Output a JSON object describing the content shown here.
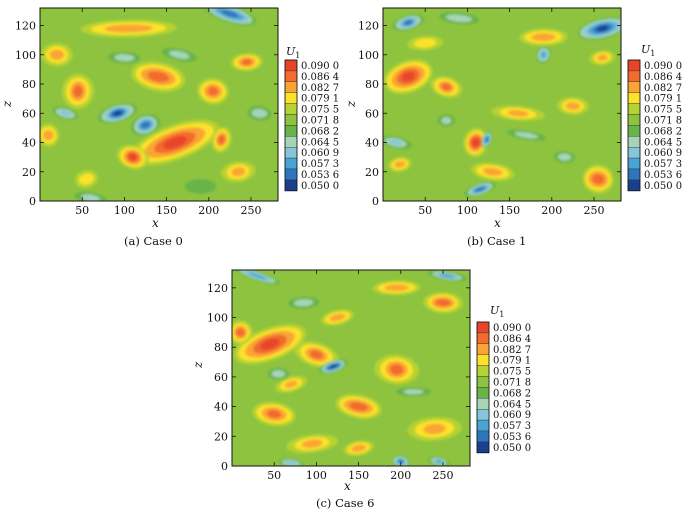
{
  "colors": [
    "#1b3f8f",
    "#2f75be",
    "#4aa4d3",
    "#86c6d8",
    "#a6d4b7",
    "#68b449",
    "#8ec33f",
    "#b6d233",
    "#fce32a",
    "#f9a535",
    "#f26b2f",
    "#e8442c"
  ],
  "chart_data": [
    {
      "type": "heatmap",
      "caption": "(a) Case 0",
      "xlabel": "x",
      "ylabel": "z",
      "xlim": [
        0,
        282
      ],
      "ylim": [
        0,
        132
      ],
      "xticks": [
        "50",
        "100",
        "150",
        "200",
        "250"
      ],
      "yticks": [
        "0",
        "20",
        "40",
        "60",
        "80",
        "100",
        "120"
      ],
      "legend_title": "U",
      "legend_subscript": "1",
      "legend_levels": [
        "0.090 0",
        "0.086 4",
        "0.082 7",
        "0.079 1",
        "0.075 5",
        "0.071 8",
        "0.068 2",
        "0.064 5",
        "0.060 9",
        "0.057 3",
        "0.053 6",
        "0.050 0"
      ],
      "features": [
        {
          "x": 160,
          "z": 40,
          "rx": 55,
          "rz": 12,
          "value": 0.09
        },
        {
          "x": 110,
          "z": 30,
          "rx": 18,
          "rz": 8,
          "value": 0.089
        },
        {
          "x": 215,
          "z": 42,
          "rx": 12,
          "rz": 9,
          "value": 0.088
        },
        {
          "x": 140,
          "z": 85,
          "rx": 35,
          "rz": 10,
          "value": 0.088
        },
        {
          "x": 205,
          "z": 75,
          "rx": 18,
          "rz": 9,
          "value": 0.087
        },
        {
          "x": 45,
          "z": 75,
          "rx": 18,
          "rz": 12,
          "value": 0.086
        },
        {
          "x": 20,
          "z": 100,
          "rx": 20,
          "rz": 8,
          "value": 0.085
        },
        {
          "x": 105,
          "z": 118,
          "rx": 60,
          "rz": 6,
          "value": 0.083
        },
        {
          "x": 245,
          "z": 95,
          "rx": 18,
          "rz": 6,
          "value": 0.086
        },
        {
          "x": 235,
          "z": 20,
          "rx": 20,
          "rz": 7,
          "value": 0.084
        },
        {
          "x": 10,
          "z": 45,
          "rx": 14,
          "rz": 8,
          "value": 0.084
        },
        {
          "x": 55,
          "z": 15,
          "rx": 14,
          "rz": 6,
          "value": 0.081
        },
        {
          "x": 92,
          "z": 60,
          "rx": 22,
          "rz": 6,
          "value": 0.05
        },
        {
          "x": 125,
          "z": 52,
          "rx": 18,
          "rz": 7,
          "value": 0.053
        },
        {
          "x": 225,
          "z": 128,
          "rx": 35,
          "rz": 6,
          "value": 0.052
        },
        {
          "x": 30,
          "z": 60,
          "rx": 15,
          "rz": 4,
          "value": 0.06
        },
        {
          "x": 165,
          "z": 100,
          "rx": 20,
          "rz": 4,
          "value": 0.062
        },
        {
          "x": 60,
          "z": 2,
          "rx": 20,
          "rz": 4,
          "value": 0.062
        },
        {
          "x": 260,
          "z": 60,
          "rx": 15,
          "rz": 5,
          "value": 0.064
        },
        {
          "x": 100,
          "z": 98,
          "rx": 18,
          "rz": 4,
          "value": 0.065
        },
        {
          "x": 190,
          "z": 10,
          "rx": 18,
          "rz": 5,
          "value": 0.066
        }
      ]
    },
    {
      "type": "heatmap",
      "caption": "(b) Case 1",
      "xlabel": "x",
      "ylabel": "z",
      "xlim": [
        0,
        282
      ],
      "ylim": [
        0,
        132
      ],
      "xticks": [
        "50",
        "100",
        "150",
        "200",
        "250"
      ],
      "yticks": [
        "0",
        "20",
        "40",
        "60",
        "80",
        "100",
        "120"
      ],
      "legend_title": "U",
      "legend_subscript": "1",
      "legend_levels": [
        "0.090 0",
        "0.086 4",
        "0.082 7",
        "0.079 1",
        "0.075 5",
        "0.071 8",
        "0.068 2",
        "0.064 5",
        "0.060 9",
        "0.057 3",
        "0.053 6",
        "0.050 0"
      ],
      "features": [
        {
          "x": 30,
          "z": 85,
          "rx": 30,
          "rz": 11,
          "value": 0.09
        },
        {
          "x": 75,
          "z": 78,
          "rx": 18,
          "rz": 7,
          "value": 0.087
        },
        {
          "x": 110,
          "z": 40,
          "rx": 15,
          "rz": 10,
          "value": 0.089
        },
        {
          "x": 255,
          "z": 15,
          "rx": 20,
          "rz": 10,
          "value": 0.088
        },
        {
          "x": 130,
          "z": 20,
          "rx": 25,
          "rz": 6,
          "value": 0.084
        },
        {
          "x": 160,
          "z": 60,
          "rx": 30,
          "rz": 5,
          "value": 0.083
        },
        {
          "x": 225,
          "z": 65,
          "rx": 20,
          "rz": 6,
          "value": 0.084
        },
        {
          "x": 190,
          "z": 112,
          "rx": 30,
          "rz": 6,
          "value": 0.083
        },
        {
          "x": 50,
          "z": 108,
          "rx": 20,
          "rz": 5,
          "value": 0.081
        },
        {
          "x": 260,
          "z": 98,
          "rx": 15,
          "rz": 5,
          "value": 0.084
        },
        {
          "x": 20,
          "z": 25,
          "rx": 15,
          "rz": 5,
          "value": 0.082
        },
        {
          "x": 260,
          "z": 118,
          "rx": 30,
          "rz": 7,
          "value": 0.05
        },
        {
          "x": 30,
          "z": 122,
          "rx": 18,
          "rz": 5,
          "value": 0.054
        },
        {
          "x": 115,
          "z": 8,
          "rx": 20,
          "rz": 4,
          "value": 0.052
        },
        {
          "x": 123,
          "z": 42,
          "rx": 6,
          "rz": 6,
          "value": 0.052
        },
        {
          "x": 190,
          "z": 100,
          "rx": 8,
          "rz": 6,
          "value": 0.056
        },
        {
          "x": 15,
          "z": 40,
          "rx": 18,
          "rz": 4,
          "value": 0.06
        },
        {
          "x": 170,
          "z": 45,
          "rx": 25,
          "rz": 3,
          "value": 0.064
        },
        {
          "x": 90,
          "z": 125,
          "rx": 25,
          "rz": 4,
          "value": 0.063
        },
        {
          "x": 215,
          "z": 30,
          "rx": 12,
          "rz": 4,
          "value": 0.062
        },
        {
          "x": 75,
          "z": 55,
          "rx": 10,
          "rz": 4,
          "value": 0.065
        }
      ]
    },
    {
      "type": "heatmap",
      "caption": "(c) Case 6",
      "xlabel": "x",
      "ylabel": "z",
      "xlim": [
        0,
        282
      ],
      "ylim": [
        0,
        132
      ],
      "xticks": [
        "50",
        "100",
        "150",
        "200",
        "250"
      ],
      "yticks": [
        "0",
        "20",
        "40",
        "60",
        "80",
        "100",
        "120"
      ],
      "legend_title": "U",
      "legend_subscript": "1",
      "legend_levels": [
        "0.090 0",
        "0.086 4",
        "0.082 7",
        "0.079 1",
        "0.075 5",
        "0.071 8",
        "0.068 2",
        "0.064 5",
        "0.060 9",
        "0.057 3",
        "0.053 6",
        "0.050 0"
      ],
      "features": [
        {
          "x": 45,
          "z": 82,
          "rx": 45,
          "rz": 11,
          "value": 0.09
        },
        {
          "x": 100,
          "z": 75,
          "rx": 25,
          "rz": 8,
          "value": 0.088
        },
        {
          "x": 10,
          "z": 90,
          "rx": 15,
          "rz": 8,
          "value": 0.088
        },
        {
          "x": 150,
          "z": 40,
          "rx": 30,
          "rz": 8,
          "value": 0.088
        },
        {
          "x": 50,
          "z": 35,
          "rx": 25,
          "rz": 8,
          "value": 0.086
        },
        {
          "x": 195,
          "z": 65,
          "rx": 25,
          "rz": 10,
          "value": 0.086
        },
        {
          "x": 250,
          "z": 110,
          "rx": 25,
          "rz": 7,
          "value": 0.086
        },
        {
          "x": 195,
          "z": 120,
          "rx": 30,
          "rz": 5,
          "value": 0.084
        },
        {
          "x": 240,
          "z": 25,
          "rx": 30,
          "rz": 8,
          "value": 0.084
        },
        {
          "x": 95,
          "z": 15,
          "rx": 30,
          "rz": 6,
          "value": 0.082
        },
        {
          "x": 150,
          "z": 12,
          "rx": 20,
          "rz": 5,
          "value": 0.084
        },
        {
          "x": 125,
          "z": 100,
          "rx": 20,
          "rz": 5,
          "value": 0.082
        },
        {
          "x": 70,
          "z": 55,
          "rx": 18,
          "rz": 5,
          "value": 0.082
        },
        {
          "x": 120,
          "z": 67,
          "rx": 18,
          "rz": 4,
          "value": 0.05
        },
        {
          "x": 30,
          "z": 128,
          "rx": 30,
          "rz": 3,
          "value": 0.056
        },
        {
          "x": 200,
          "z": 3,
          "rx": 10,
          "rz": 4,
          "value": 0.052
        },
        {
          "x": 245,
          "z": 3,
          "rx": 12,
          "rz": 3,
          "value": 0.056
        },
        {
          "x": 255,
          "z": 128,
          "rx": 25,
          "rz": 3,
          "value": 0.056
        },
        {
          "x": 70,
          "z": 2,
          "rx": 15,
          "rz": 3,
          "value": 0.06
        },
        {
          "x": 55,
          "z": 62,
          "rx": 12,
          "rz": 4,
          "value": 0.062
        },
        {
          "x": 215,
          "z": 50,
          "rx": 20,
          "rz": 3,
          "value": 0.064
        },
        {
          "x": 85,
          "z": 110,
          "rx": 20,
          "rz": 4,
          "value": 0.065
        }
      ]
    }
  ]
}
